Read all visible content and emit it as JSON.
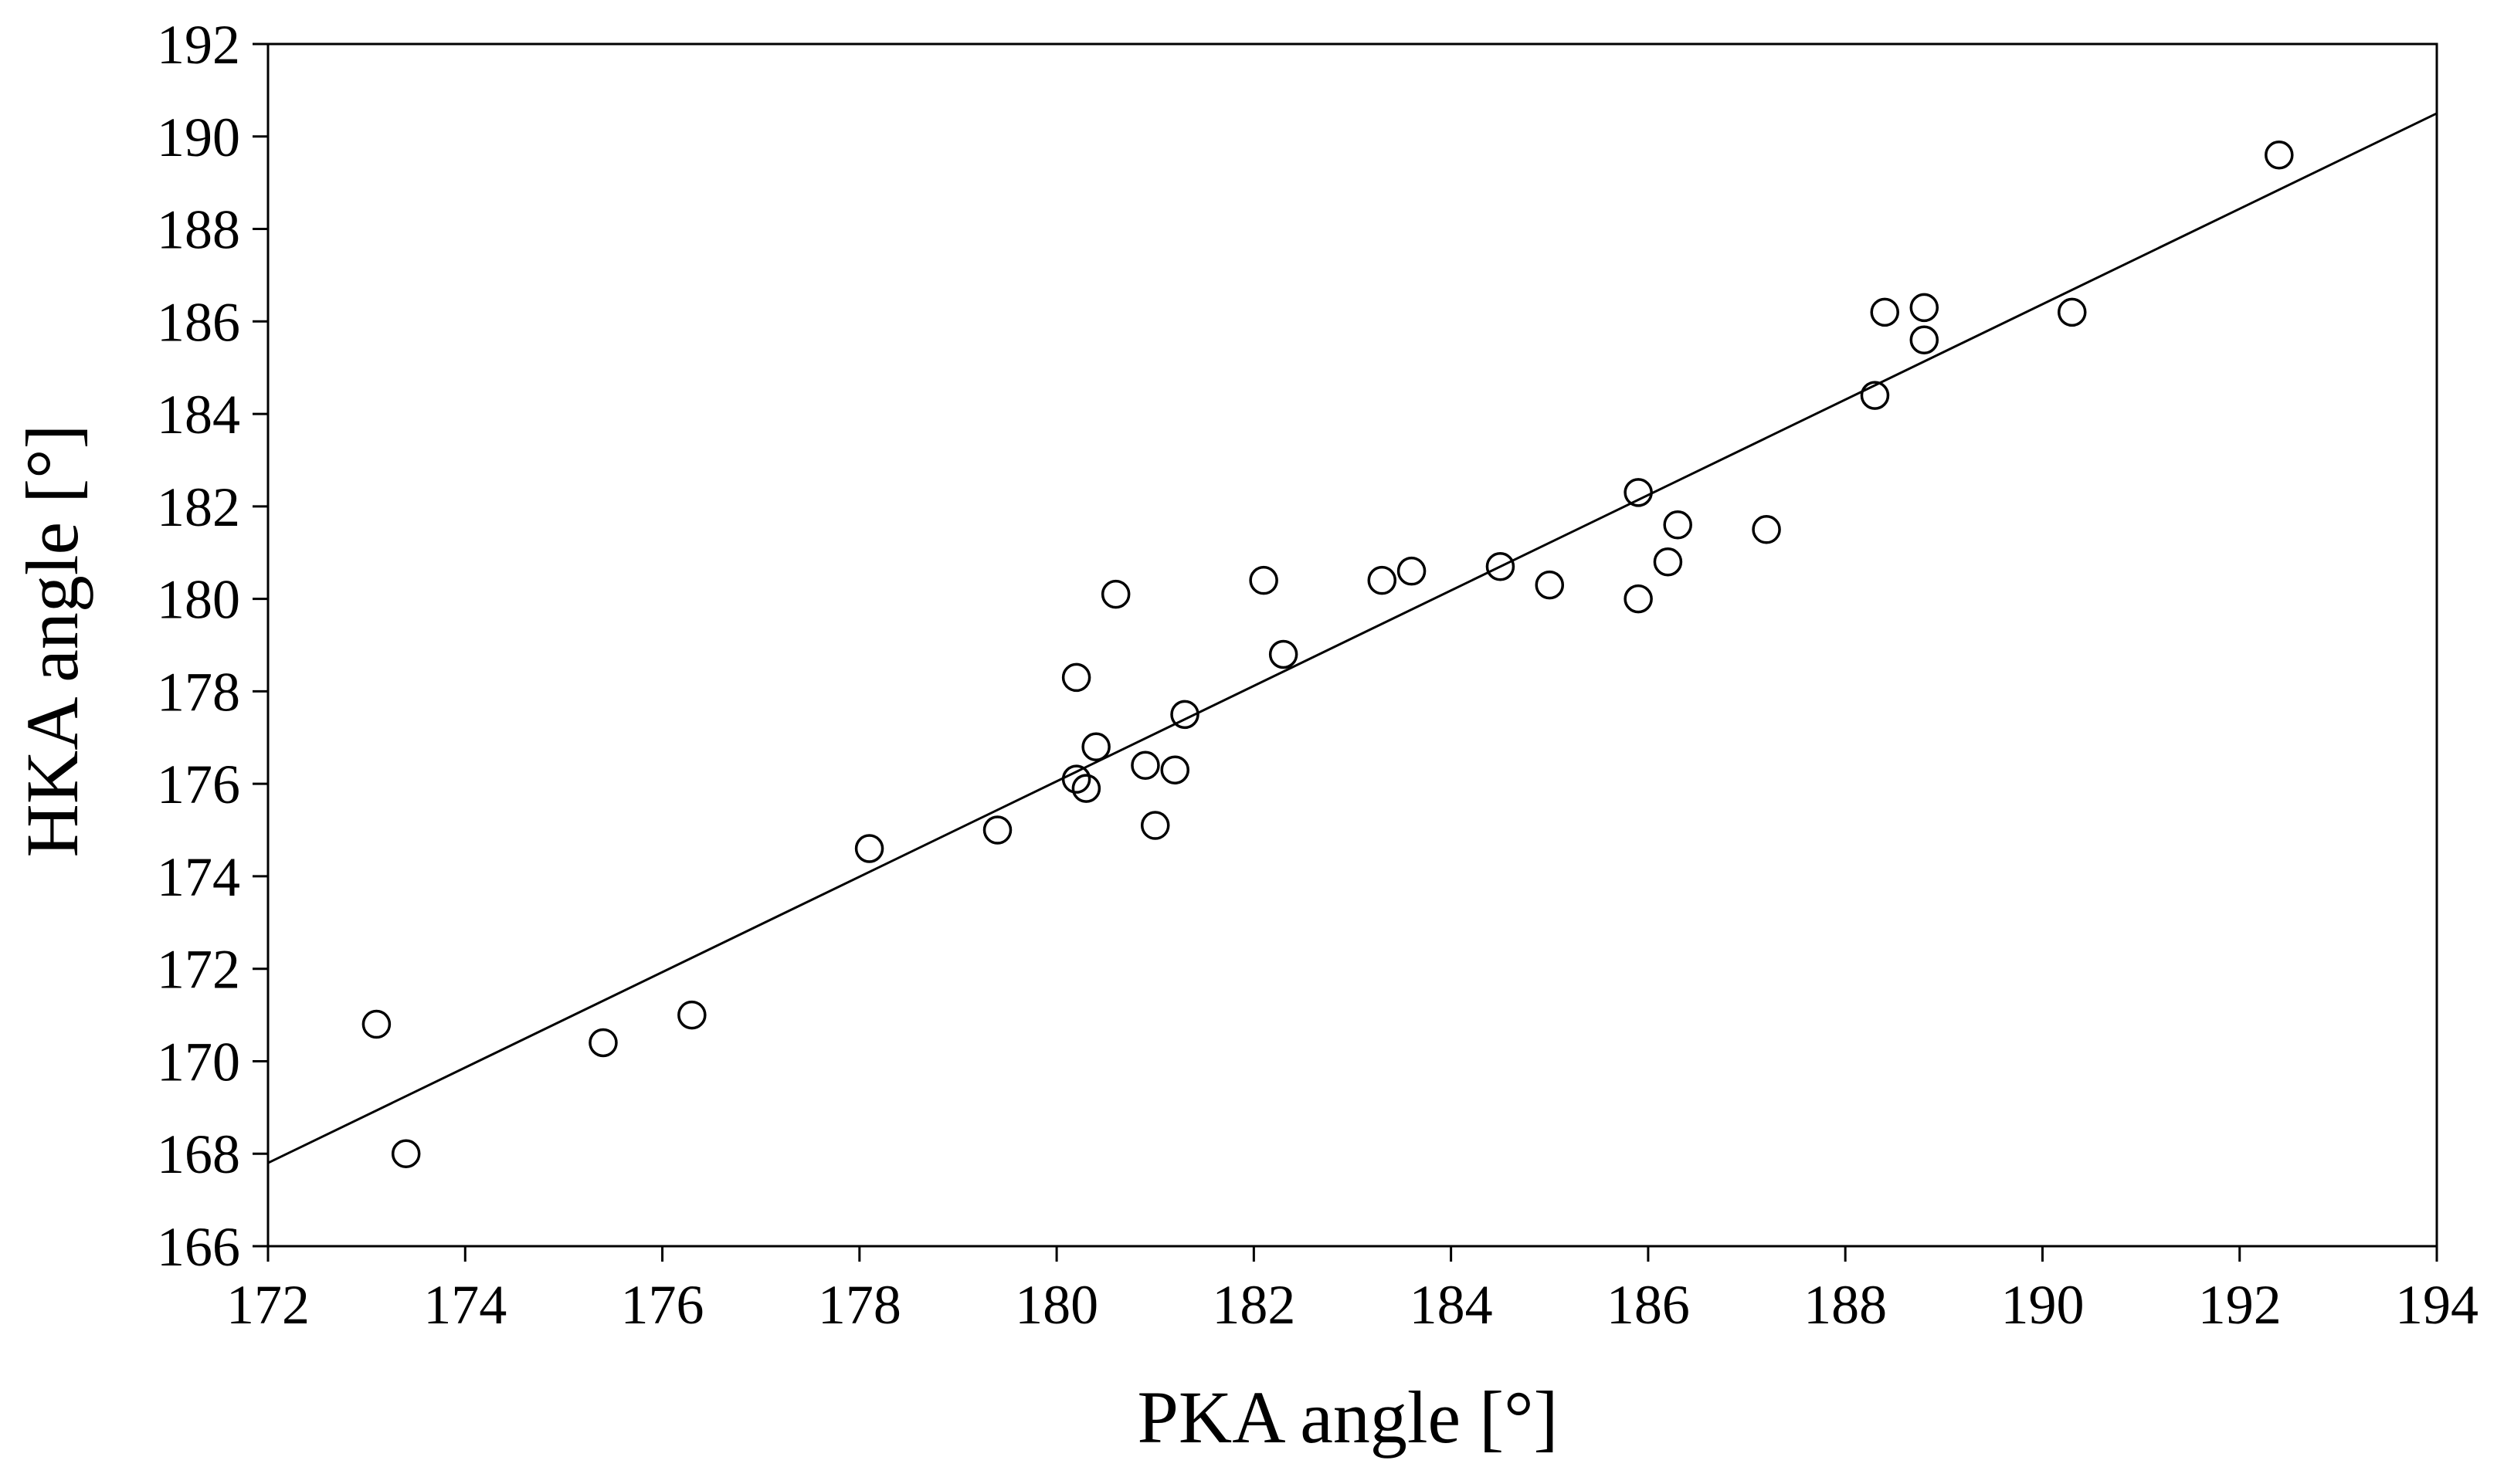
{
  "chart_data": {
    "type": "scatter",
    "title": "",
    "xlabel": "PKA angle [°]",
    "ylabel": "HKA angle [°]",
    "xlim": [
      172,
      194
    ],
    "ylim": [
      166,
      192
    ],
    "x_ticks": [
      172,
      174,
      176,
      178,
      180,
      182,
      184,
      186,
      188,
      190,
      192,
      194
    ],
    "y_ticks": [
      166,
      168,
      170,
      172,
      174,
      176,
      178,
      180,
      182,
      184,
      186,
      188,
      190,
      192
    ],
    "x_tick_labels": [
      "172",
      "174",
      "176",
      "178",
      "180",
      "182",
      "184",
      "186",
      "188",
      "190",
      "192",
      "194"
    ],
    "y_tick_labels": [
      "166",
      "168",
      "170",
      "172",
      "174",
      "176",
      "178",
      "180",
      "182",
      "184",
      "186",
      "188",
      "190",
      "192"
    ],
    "grid": false,
    "marker": "open-circle",
    "series": [
      {
        "points": [
          [
            173.1,
            170.8
          ],
          [
            173.4,
            168.0
          ],
          [
            175.4,
            170.4
          ],
          [
            176.3,
            171.0
          ],
          [
            178.1,
            174.6
          ],
          [
            179.4,
            175.0
          ],
          [
            180.2,
            178.3
          ],
          [
            180.2,
            176.1
          ],
          [
            180.3,
            175.9
          ],
          [
            180.4,
            176.8
          ],
          [
            180.6,
            180.1
          ],
          [
            180.9,
            176.4
          ],
          [
            181.0,
            175.1
          ],
          [
            181.2,
            176.3
          ],
          [
            181.3,
            177.5
          ],
          [
            182.1,
            180.4
          ],
          [
            182.3,
            178.8
          ],
          [
            183.3,
            180.4
          ],
          [
            183.6,
            180.6
          ],
          [
            184.5,
            180.7
          ],
          [
            185.0,
            180.3
          ],
          [
            185.9,
            182.3
          ],
          [
            185.9,
            180.0
          ],
          [
            186.2,
            180.8
          ],
          [
            186.3,
            181.6
          ],
          [
            187.2,
            181.5
          ],
          [
            188.3,
            184.4
          ],
          [
            188.4,
            186.2
          ],
          [
            188.8,
            186.3
          ],
          [
            188.8,
            185.6
          ],
          [
            190.3,
            186.2
          ],
          [
            192.4,
            189.6
          ]
        ]
      }
    ],
    "regression_line": {
      "x": [
        172,
        194
      ],
      "y": [
        167.8,
        190.5
      ]
    }
  },
  "colors": {
    "axis": "#000000",
    "marker_stroke": "#000000",
    "line": "#000000",
    "background": "#ffffff"
  }
}
